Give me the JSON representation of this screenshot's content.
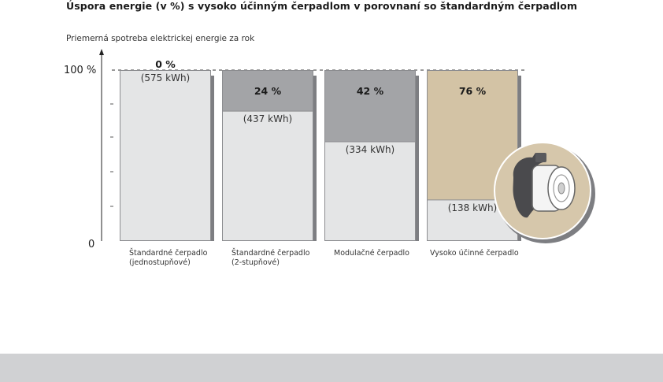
{
  "chart_data": {
    "type": "bar",
    "title": "Úspora energie (v %) s vysoko účinným čerpadlom v porovnaní so štandardným čerpadlom",
    "ylabel": "Priemerná spotreba elektrickej energie za rok",
    "ylim": [
      0,
      100
    ],
    "yticks": [
      "0",
      "100 %"
    ],
    "categories": [
      [
        "Štandardné čerpadlo",
        "(jednostupňové)"
      ],
      [
        "Štandardné čerpadlo",
        "(2-stupňové)"
      ],
      [
        "Modulačné čerpadlo"
      ],
      [
        "Vysoko účinné čerpadlo"
      ]
    ],
    "consumption_kwh": [
      575,
      437,
      334,
      138
    ],
    "consumption_labels": [
      "(575 kWh)",
      "(437 kWh)",
      "(334 kWh)",
      "(138 kWh)"
    ],
    "savings_percent": [
      0,
      24,
      42,
      76
    ],
    "savings_labels": [
      "0 %",
      "24 %",
      "42 %",
      "76 %"
    ],
    "colors": {
      "consumption": "#e4e5e6",
      "savings": [
        "#a3a4a7",
        "#a3a4a7",
        "#a3a4a7",
        "#d3c3a5"
      ],
      "shadow": "#7d7e82",
      "outline": "#8c8d90"
    }
  }
}
